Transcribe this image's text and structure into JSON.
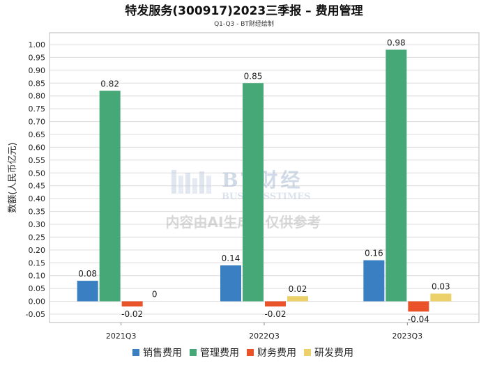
{
  "chart_data": {
    "type": "bar",
    "title": "特发服务(300917)2023三季报 – 费用管理",
    "subtitle": "Q1-Q3 - BT财经绘制",
    "ylabel": "数额(人民币亿元)",
    "xlabel": "",
    "categories": [
      "2021Q3",
      "2022Q3",
      "2023Q3"
    ],
    "ylim": [
      -0.05,
      1.0
    ],
    "yticks": [
      -0.05,
      0.0,
      0.05,
      0.1,
      0.15,
      0.2,
      0.25,
      0.3,
      0.35,
      0.4,
      0.45,
      0.5,
      0.55,
      0.6,
      0.65,
      0.7,
      0.75,
      0.8,
      0.85,
      0.9,
      0.95,
      1.0
    ],
    "grid": true,
    "legend_position": "bottom",
    "series": [
      {
        "name": "销售费用",
        "color": "#3a7fc1",
        "values": [
          0.08,
          0.14,
          0.16
        ],
        "labels": [
          "0.08",
          "0.14",
          "0.16"
        ]
      },
      {
        "name": "管理费用",
        "color": "#46a876",
        "values": [
          0.82,
          0.85,
          0.98
        ],
        "labels": [
          "0.82",
          "0.85",
          "0.98"
        ]
      },
      {
        "name": "财务费用",
        "color": "#ea5229",
        "values": [
          -0.02,
          -0.02,
          -0.04
        ],
        "labels": [
          "-0.02",
          "-0.02",
          "-0.04"
        ]
      },
      {
        "name": "研发费用",
        "color": "#ecd06a",
        "values": [
          0,
          0.02,
          0.03
        ],
        "labels": [
          "0",
          "0.02",
          "0.03"
        ]
      }
    ]
  },
  "watermark": {
    "logo_text": "BT财经",
    "logo_sub": "BUSINESSTIMES",
    "notice": "内容由AI生成，仅供参考"
  }
}
